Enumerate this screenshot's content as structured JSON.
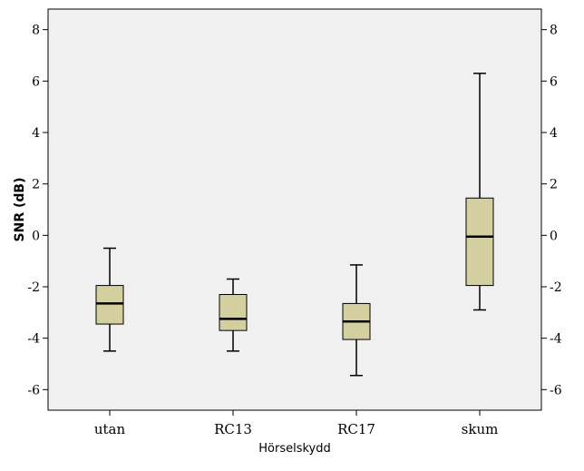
{
  "chart_data": {
    "type": "box",
    "xlabel": "Hörselskydd",
    "ylabel": "SNR (dB)",
    "ylim": [
      -6.8,
      8.8
    ],
    "yticks": [
      -6,
      -4,
      -2,
      0,
      2,
      4,
      6,
      8
    ],
    "ytick_labels": [
      "-6",
      "-4",
      "-2",
      "0",
      "2",
      "4",
      "6",
      "8"
    ],
    "grid": false,
    "mirror_right_axis": true,
    "categories": [
      "utan",
      "RC13",
      "RC17",
      "skum"
    ],
    "boxes": [
      {
        "category": "utan",
        "min": -4.5,
        "q1": -3.45,
        "median": -2.65,
        "q3": -1.95,
        "max": -0.5
      },
      {
        "category": "RC13",
        "min": -4.5,
        "q1": -3.7,
        "median": -3.25,
        "q3": -2.3,
        "max": -1.7
      },
      {
        "category": "RC17",
        "min": -5.45,
        "q1": -4.05,
        "median": -3.35,
        "q3": -2.65,
        "max": -1.15
      },
      {
        "category": "skum",
        "min": -2.9,
        "q1": -1.95,
        "median": -0.05,
        "q3": 1.45,
        "max": 6.3
      }
    ],
    "colors": {
      "plot_background": "#f0f0f0",
      "box_fill": "#d4cf9f",
      "box_stroke": "#000000"
    }
  }
}
